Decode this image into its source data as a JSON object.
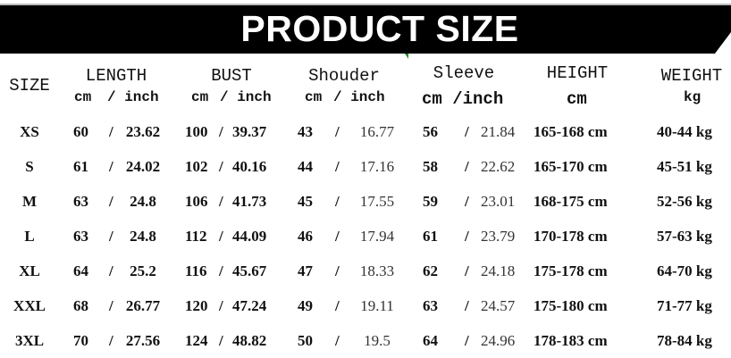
{
  "title": "PRODUCT SIZE",
  "colors": {
    "banner": "#000000",
    "title": "#ffffff",
    "text": "#111111"
  },
  "headers": [
    {
      "label": "SIZE",
      "unit": ""
    },
    {
      "label": "LENGTH",
      "unit_cm": "cm",
      "unit_inch": "/ inch"
    },
    {
      "label": "BUST",
      "unit_cm": "cm",
      "unit_inch": "/ inch"
    },
    {
      "label": "Shouder",
      "unit_cm": "cm",
      "unit_inch": "/ inch"
    },
    {
      "label": "Sleeve",
      "unit": "cm /inch"
    },
    {
      "label": "HEIGHT",
      "unit": "cm"
    },
    {
      "label": "WEIGHT",
      "unit": "kg"
    }
  ],
  "rows": [
    {
      "size": "XS",
      "length_cm": "60",
      "length_in": "23.62",
      "bust_cm": "100",
      "bust_in": "39.37",
      "shoulder_cm": "43",
      "shoulder_in": "16.77",
      "sleeve_cm": "56",
      "sleeve_in": "21.84",
      "height": "165-168 cm",
      "weight": "40-44 kg"
    },
    {
      "size": "S",
      "length_cm": "61",
      "length_in": "24.02",
      "bust_cm": "102",
      "bust_in": "40.16",
      "shoulder_cm": "44",
      "shoulder_in": "17.16",
      "sleeve_cm": "58",
      "sleeve_in": "22.62",
      "height": "165-170 cm",
      "weight": "45-51 kg"
    },
    {
      "size": "M",
      "length_cm": "63",
      "length_in": "24.8",
      "bust_cm": "106",
      "bust_in": "41.73",
      "shoulder_cm": "45",
      "shoulder_in": "17.55",
      "sleeve_cm": "59",
      "sleeve_in": "23.01",
      "height": "168-175 cm",
      "weight": "52-56 kg"
    },
    {
      "size": "L",
      "length_cm": "63",
      "length_in": "24.8",
      "bust_cm": "112",
      "bust_in": "44.09",
      "shoulder_cm": "46",
      "shoulder_in": "17.94",
      "sleeve_cm": "61",
      "sleeve_in": "23.79",
      "height": "170-178 cm",
      "weight": "57-63 kg"
    },
    {
      "size": "XL",
      "length_cm": "64",
      "length_in": "25.2",
      "bust_cm": "116",
      "bust_in": "45.67",
      "shoulder_cm": "47",
      "shoulder_in": "18.33",
      "sleeve_cm": "62",
      "sleeve_in": "24.18",
      "height": "175-178 cm",
      "weight": "64-70 kg"
    },
    {
      "size": "XXL",
      "length_cm": "68",
      "length_in": "26.77",
      "bust_cm": "120",
      "bust_in": "47.24",
      "shoulder_cm": "49",
      "shoulder_in": "19.11",
      "sleeve_cm": "63",
      "sleeve_in": "24.57",
      "height": "175-180 cm",
      "weight": "71-77 kg"
    },
    {
      "size": "3XL",
      "length_cm": "70",
      "length_in": "27.56",
      "bust_cm": "124",
      "bust_in": "48.82",
      "shoulder_cm": "50",
      "shoulder_in": "19.5",
      "sleeve_cm": "64",
      "sleeve_in": "24.96",
      "height": "178-183 cm",
      "weight": "78-84 kg"
    }
  ],
  "separator": "/"
}
